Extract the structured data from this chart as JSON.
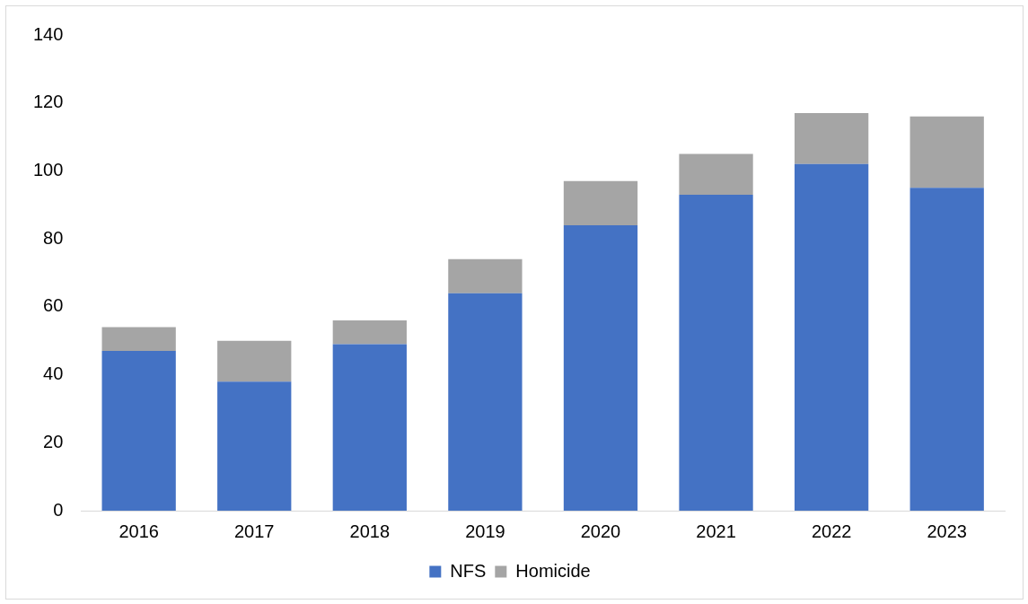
{
  "chart_data": {
    "type": "bar",
    "stacked": true,
    "categories": [
      "2016",
      "2017",
      "2018",
      "2019",
      "2020",
      "2021",
      "2022",
      "2023"
    ],
    "series": [
      {
        "name": "NFS",
        "color": "#4472c4",
        "values": [
          47,
          38,
          49,
          64,
          84,
          93,
          102,
          95
        ]
      },
      {
        "name": "Homicide",
        "color": "#a5a5a5",
        "values": [
          7,
          12,
          7,
          10,
          13,
          12,
          15,
          21
        ]
      }
    ],
    "ylim": [
      0,
      140
    ],
    "yticks": [
      0,
      20,
      40,
      60,
      80,
      100,
      120,
      140
    ],
    "grid": false,
    "legend": "bottom"
  }
}
